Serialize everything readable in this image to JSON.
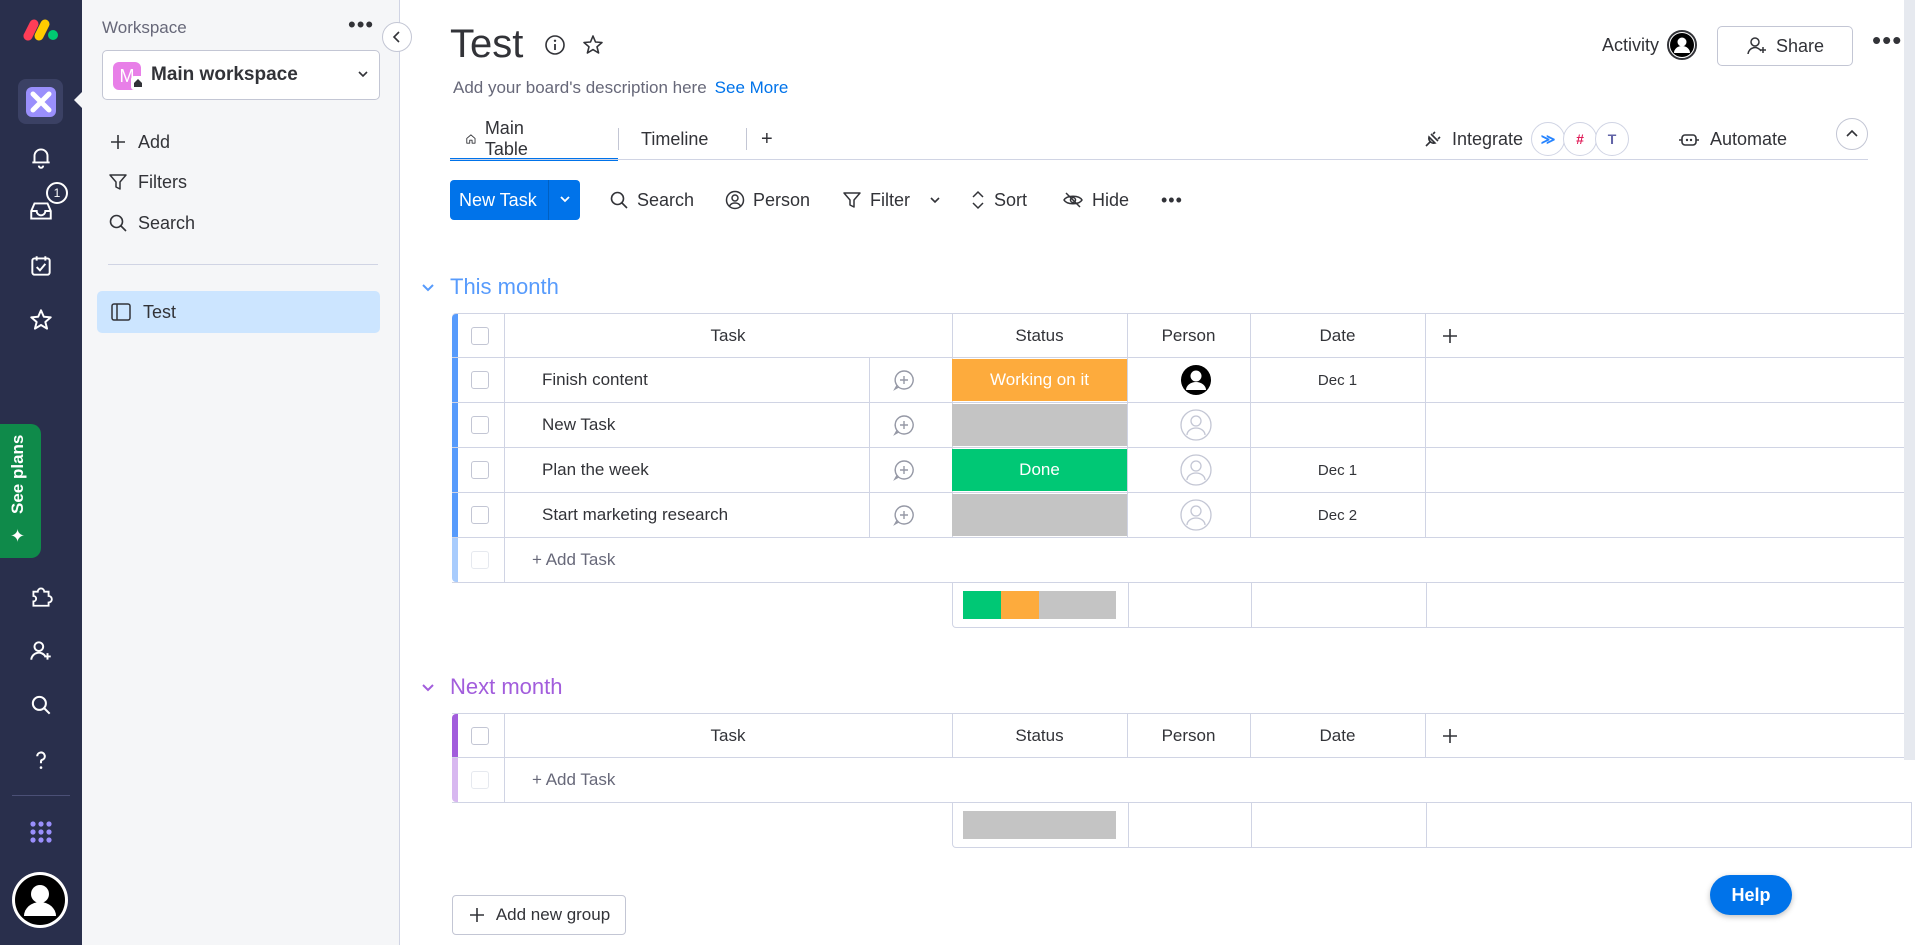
{
  "rail": {
    "inbox_badge": "1",
    "see_plans": "See plans"
  },
  "sidebar": {
    "workspace_label": "Workspace",
    "workspace_initial": "M",
    "workspace_name": "Main workspace",
    "actions": [
      {
        "label": "Add",
        "icon": "plus-icon"
      },
      {
        "label": "Filters",
        "icon": "filter-icon"
      },
      {
        "label": "Search",
        "icon": "search-icon"
      }
    ],
    "boards": [
      {
        "label": "Test",
        "icon": "board-icon"
      }
    ]
  },
  "header": {
    "title": "Test",
    "description": "Add your board's description here",
    "see_more": "See More",
    "activity": "Activity",
    "share": "Share"
  },
  "tabs": {
    "items": [
      "Main Table",
      "Timeline"
    ],
    "add": "+",
    "integrate": "Integrate",
    "automate": "Automate"
  },
  "toolbar": {
    "new_task": "New Task",
    "search": "Search",
    "person": "Person",
    "filter": "Filter",
    "sort": "Sort",
    "hide": "Hide"
  },
  "columns": {
    "task": "Task",
    "status": "Status",
    "person": "Person",
    "date": "Date"
  },
  "colors": {
    "accent": "#0073ea",
    "group1": "#579bfc",
    "group2": "#a25ddc",
    "working": "#fdab3d",
    "done": "#00c875",
    "empty": "#c4c4c4"
  },
  "groups": [
    {
      "title": "This month",
      "rows": [
        {
          "task": "Finish content",
          "status": "Working on it",
          "date": "Dec 1",
          "person_assigned": true
        },
        {
          "task": "New Task",
          "status": "",
          "date": "",
          "person_assigned": false
        },
        {
          "task": "Plan the week",
          "status": "Done",
          "date": "Dec 1",
          "person_assigned": false
        },
        {
          "task": "Start marketing research",
          "status": "",
          "date": "Dec 2",
          "person_assigned": false
        }
      ],
      "add_task": "+ Add Task"
    },
    {
      "title": "Next month",
      "rows": [],
      "add_task": "+ Add Task"
    }
  ],
  "footer": {
    "add_group": "Add new group",
    "help": "Help"
  }
}
